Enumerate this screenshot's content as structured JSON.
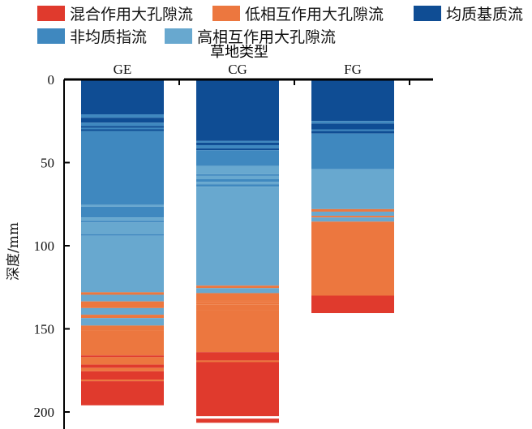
{
  "chart_data": {
    "type": "bar",
    "subtype": "stacked-depth-profile",
    "title": "草地类型",
    "xlabel": "草地类型",
    "ylabel": "深度/mm",
    "ylim": [
      0,
      210
    ],
    "yticks": [
      0,
      50,
      100,
      150,
      200
    ],
    "y_inverted": true,
    "x_axis_position": "top",
    "legend_placement": "top",
    "classes": [
      {
        "name": "混合作用大孔隙流",
        "color": "#e03a2d"
      },
      {
        "name": "低相互作用大孔隙流",
        "color": "#ec773f"
      },
      {
        "name": "均质基质流",
        "color": "#0f4d94"
      },
      {
        "name": "非均质指流",
        "color": "#3f88bf"
      },
      {
        "name": "高相互作用大孔隙流",
        "color": "#68a8cf"
      }
    ],
    "categories": [
      "GE",
      "CG",
      "FG"
    ],
    "series": [
      {
        "name": "GE",
        "segments": [
          [
            0,
            21,
            2
          ],
          [
            21,
            23,
            3
          ],
          [
            23,
            26,
            2
          ],
          [
            26,
            28,
            3
          ],
          [
            28,
            29,
            2
          ],
          [
            29,
            30,
            3
          ],
          [
            30,
            31,
            2
          ],
          [
            31,
            75.5,
            3
          ],
          [
            75.5,
            76.5,
            4
          ],
          [
            76.5,
            83,
            3
          ],
          [
            83,
            85,
            4
          ],
          [
            85,
            86,
            3
          ],
          [
            86,
            93,
            4
          ],
          [
            93,
            94,
            3
          ],
          [
            94,
            128,
            4
          ],
          [
            128,
            129.5,
            1
          ],
          [
            129.5,
            133.5,
            4
          ],
          [
            133.5,
            137.5,
            1
          ],
          [
            137.5,
            141.5,
            4
          ],
          [
            141.5,
            143.5,
            1
          ],
          [
            143.5,
            148,
            4
          ],
          [
            148,
            151,
            1
          ],
          [
            151,
            166,
            1
          ],
          [
            166,
            167,
            0
          ],
          [
            167,
            171.5,
            1
          ],
          [
            171.5,
            173.5,
            0
          ],
          [
            173.5,
            175.5,
            1
          ],
          [
            175.5,
            180.5,
            0
          ],
          [
            180.5,
            181.5,
            1
          ],
          [
            181.5,
            196,
            0
          ]
        ]
      },
      {
        "name": "CG",
        "segments": [
          [
            0,
            37,
            2
          ],
          [
            37,
            38,
            3
          ],
          [
            38,
            39.5,
            2
          ],
          [
            39.5,
            41.5,
            3
          ],
          [
            41.5,
            42.5,
            2
          ],
          [
            42.5,
            52,
            3
          ],
          [
            52,
            57,
            4
          ],
          [
            57,
            58,
            3
          ],
          [
            58,
            60,
            4
          ],
          [
            60,
            61.5,
            3
          ],
          [
            61.5,
            63,
            4
          ],
          [
            63,
            64.5,
            3
          ],
          [
            64.5,
            124,
            4
          ],
          [
            124,
            125.5,
            1
          ],
          [
            125.5,
            128.5,
            4
          ],
          [
            128.5,
            132.7,
            1
          ],
          [
            132.7,
            134,
            1
          ],
          [
            134,
            135.5,
            1
          ],
          [
            135.5,
            139,
            1
          ],
          [
            139,
            164,
            1
          ],
          [
            164,
            169,
            0
          ],
          [
            169,
            170,
            1
          ],
          [
            170,
            202.5,
            0
          ],
          [
            204,
            206.5,
            0
          ]
        ]
      },
      {
        "name": "FG",
        "segments": [
          [
            0,
            25,
            2
          ],
          [
            25,
            26.5,
            3
          ],
          [
            26.5,
            30,
            2
          ],
          [
            30,
            31,
            3
          ],
          [
            31,
            32.5,
            2
          ],
          [
            32.5,
            54,
            3
          ],
          [
            54,
            78,
            4
          ],
          [
            78,
            79.5,
            1
          ],
          [
            79.5,
            82,
            4
          ],
          [
            82,
            83,
            1
          ],
          [
            83,
            85.5,
            4
          ],
          [
            85.5,
            130,
            1
          ],
          [
            130,
            140.5,
            0
          ]
        ]
      }
    ]
  }
}
